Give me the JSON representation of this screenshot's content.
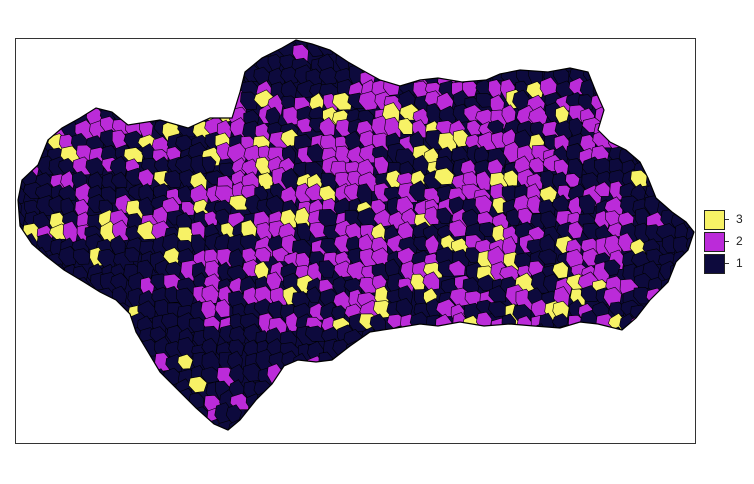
{
  "map": {
    "region": "Andalusia",
    "colors": {
      "class_1": "#0d0a3d",
      "class_2": "#bb2bd9",
      "class_3": "#f7f266",
      "border": "#000000"
    }
  },
  "legend": {
    "items": [
      {
        "label": "3",
        "color": "#f7f266"
      },
      {
        "label": "2",
        "color": "#bb2bd9"
      },
      {
        "label": "1",
        "color": "#0d0a3d"
      }
    ]
  }
}
